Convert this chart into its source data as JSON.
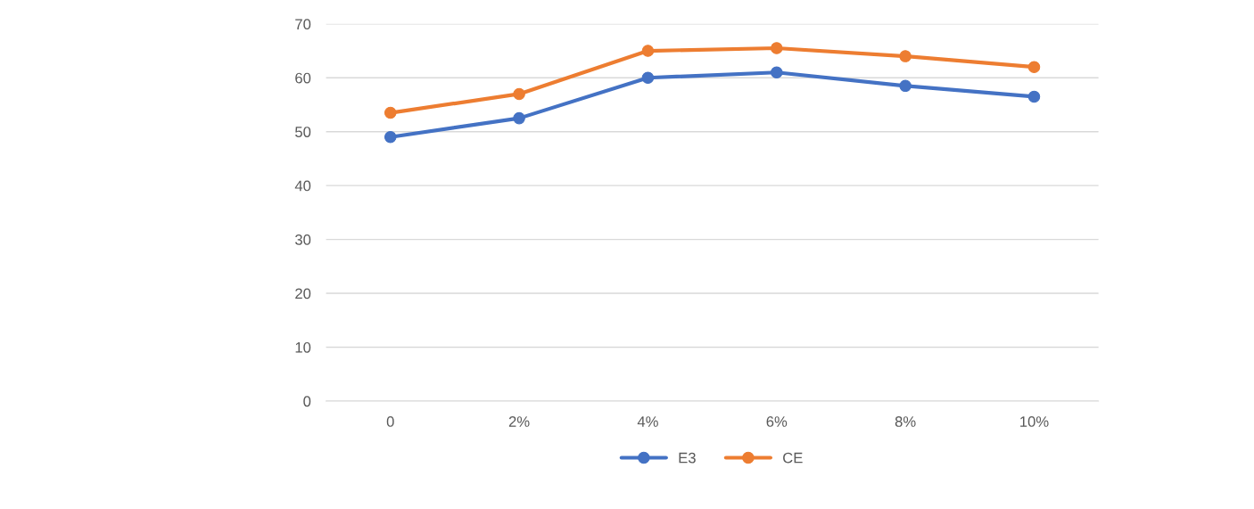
{
  "chart_data": {
    "type": "line",
    "categories": [
      "0",
      "2%",
      "4%",
      "6%",
      "8%",
      "10%"
    ],
    "series": [
      {
        "name": "E3",
        "color": "#4472c4",
        "values": [
          49,
          52.5,
          60,
          61,
          58.5,
          56.5
        ]
      },
      {
        "name": "CE",
        "color": "#ed7d31",
        "values": [
          53.5,
          57,
          65,
          65.5,
          64,
          62
        ]
      }
    ],
    "ylim": [
      0,
      70
    ],
    "yticks": [
      0,
      10,
      20,
      30,
      40,
      50,
      60,
      70
    ],
    "grid": "y",
    "legend": "bottom",
    "marker": "circle",
    "line_style": "solid"
  }
}
